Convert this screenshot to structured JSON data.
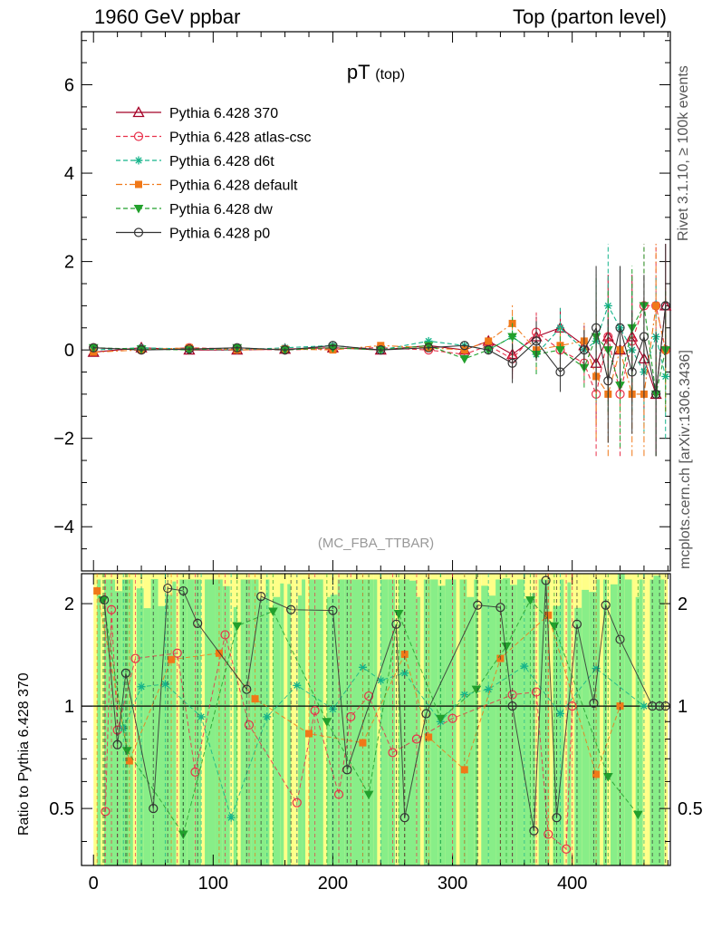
{
  "header": {
    "left": "1960 GeV ppbar",
    "right": "Top (parton level)"
  },
  "side_labels": {
    "rivet": "Rivet 3.1.10, ≥ 100k events",
    "mcplots": "mcplots.cern.ch [arXiv:1306.3436]"
  },
  "chart_data": [
    {
      "type": "scatter",
      "panel": "main",
      "title_main": "pT",
      "title_sub": "(top)",
      "watermark": "(MC_FBA_TTBAR)",
      "xlabel": "",
      "ylabel": "",
      "xlim": [
        -10,
        482
      ],
      "ylim": [
        -5,
        7.2
      ],
      "yticks": [
        -4,
        -2,
        0,
        2,
        4,
        6
      ],
      "ytick_labels": [
        "−4",
        "−2",
        "0",
        "2",
        "4",
        "6"
      ],
      "series": [
        {
          "name": "Pythia 6.428 370",
          "color": "#a50026",
          "marker": "triangle-open",
          "line": "solid",
          "x": [
            0,
            40,
            80,
            120,
            160,
            200,
            240,
            280,
            310,
            330,
            350,
            370,
            390,
            410,
            420,
            430,
            440,
            450,
            460,
            470,
            478
          ],
          "y": [
            -0.05,
            0.05,
            0.0,
            0.0,
            0.02,
            0.05,
            0.0,
            0.1,
            0.0,
            0.2,
            -0.1,
            0.3,
            0.5,
            0.1,
            -0.3,
            0.3,
            0.0,
            0.3,
            -0.2,
            -1.0,
            1.0
          ]
        },
        {
          "name": "Pythia 6.428 atlas-csc",
          "color": "#e8304a",
          "marker": "circle-open",
          "line": "dashed",
          "x": [
            0,
            40,
            80,
            120,
            160,
            200,
            240,
            280,
            310,
            330,
            350,
            370,
            390,
            410,
            420,
            430,
            440,
            450,
            460,
            470,
            478
          ],
          "y": [
            0.05,
            0.0,
            0.05,
            0.02,
            0.0,
            0.03,
            0.05,
            0.0,
            -0.1,
            0.1,
            -0.2,
            0.4,
            0.0,
            -0.3,
            -1.0,
            0.3,
            -1.0,
            0.2,
            1.0,
            1.0,
            0.0
          ]
        },
        {
          "name": "Pythia 6.428 d6t",
          "color": "#14b38a",
          "marker": "star",
          "line": "dashed",
          "x": [
            0,
            40,
            80,
            120,
            160,
            200,
            240,
            280,
            310,
            330,
            350,
            370,
            390,
            410,
            420,
            430,
            440,
            450,
            460,
            470,
            478
          ],
          "y": [
            0.0,
            0.05,
            0.02,
            0.0,
            0.05,
            0.1,
            0.0,
            0.2,
            0.1,
            0.0,
            0.3,
            -0.1,
            0.5,
            0.0,
            0.2,
            1.0,
            0.5,
            0.0,
            -0.5,
            0.3,
            -0.6
          ]
        },
        {
          "name": "Pythia 6.428 default",
          "color": "#f07818",
          "marker": "square",
          "line": "dashdot",
          "x": [
            0,
            40,
            80,
            120,
            160,
            200,
            240,
            280,
            310,
            330,
            350,
            370,
            390,
            410,
            420,
            430,
            440,
            450,
            460,
            470,
            478
          ],
          "y": [
            -0.05,
            0.0,
            0.05,
            0.0,
            0.02,
            0.0,
            0.1,
            0.05,
            0.0,
            0.2,
            0.6,
            0.0,
            0.1,
            0.2,
            -0.6,
            -1.0,
            0.0,
            -1.0,
            -1.0,
            1.0,
            0.0
          ]
        },
        {
          "name": "Pythia 6.428 dw",
          "color": "#22a02c",
          "marker": "triangle-down",
          "line": "dashed",
          "x": [
            0,
            40,
            80,
            120,
            160,
            200,
            240,
            280,
            310,
            330,
            350,
            370,
            390,
            410,
            420,
            430,
            440,
            450,
            460,
            470,
            478
          ],
          "y": [
            0.05,
            0.02,
            0.0,
            0.05,
            0.0,
            0.05,
            0.0,
            0.1,
            -0.2,
            0.0,
            0.3,
            -0.1,
            0.0,
            -0.4,
            0.3,
            0.0,
            -0.8,
            0.5,
            1.0,
            -1.0,
            0.0
          ]
        },
        {
          "name": "Pythia 6.428 p0",
          "color": "#333333",
          "marker": "circle-open",
          "line": "solid",
          "x": [
            0,
            40,
            80,
            120,
            160,
            200,
            240,
            280,
            310,
            330,
            350,
            370,
            390,
            410,
            420,
            430,
            440,
            450,
            460,
            470,
            478
          ],
          "y": [
            0.05,
            0.0,
            0.02,
            0.05,
            0.0,
            0.1,
            0.0,
            0.05,
            0.1,
            0.0,
            -0.3,
            0.2,
            -0.5,
            0.0,
            0.5,
            -0.7,
            0.5,
            -0.5,
            0.3,
            -1.0,
            1.0
          ]
        }
      ]
    },
    {
      "type": "scatter",
      "panel": "ratio",
      "ylabel": "Ratio to Pythia 6.428 370",
      "xlim": [
        -10,
        482
      ],
      "ylim": [
        0.34,
        2.45
      ],
      "yscale": "log",
      "yticks": [
        0.5,
        1,
        2
      ],
      "ytick_labels": [
        "0.5",
        "1",
        "2"
      ],
      "xticks": [
        0,
        100,
        200,
        300,
        400
      ],
      "xtick_labels": [
        "0",
        "100",
        "200",
        "300",
        "400"
      ],
      "reference": 1,
      "band_colors": {
        "inner": "#88ee88",
        "outer": "#ffff88"
      },
      "series": [
        {
          "name": "Pythia 6.428 atlas-csc",
          "color": "#e8304a",
          "marker": "circle-open",
          "x": [
            10,
            15,
            20,
            35,
            70,
            85,
            110,
            130,
            170,
            185,
            205,
            215,
            230,
            250,
            270,
            300,
            350,
            370,
            380,
            395,
            400
          ],
          "y": [
            0.49,
            1.92,
            0.85,
            1.38,
            1.43,
            0.64,
            1.62,
            0.88,
            0.52,
            0.97,
            0.55,
            0.93,
            1.07,
            0.73,
            0.8,
            0.92,
            1.08,
            1.1,
            0.42,
            0.38,
            1.0
          ]
        },
        {
          "name": "Pythia 6.428 d6t",
          "color": "#14b38a",
          "marker": "star",
          "x": [
            25,
            40,
            60,
            90,
            115,
            145,
            170,
            200,
            225,
            240,
            260,
            290,
            310,
            330,
            360,
            390,
            420,
            460
          ],
          "y": [
            0.86,
            1.14,
            1.16,
            0.93,
            0.47,
            0.93,
            1.15,
            0.98,
            1.3,
            1.19,
            1.25,
            0.9,
            1.08,
            1.12,
            1.31,
            0.95,
            1.29,
            1.0
          ]
        },
        {
          "name": "Pythia 6.428 default",
          "color": "#f07818",
          "marker": "square",
          "x": [
            3,
            30,
            65,
            105,
            135,
            180,
            225,
            260,
            280,
            310,
            340,
            380,
            420,
            440
          ],
          "y": [
            2.18,
            0.69,
            1.37,
            1.43,
            1.05,
            0.83,
            0.78,
            1.42,
            0.81,
            0.65,
            1.38,
            1.85,
            0.63,
            1.0
          ]
        },
        {
          "name": "Pythia 6.428 dw",
          "color": "#22a02c",
          "marker": "triangle-down",
          "x": [
            8,
            28,
            75,
            120,
            150,
            195,
            230,
            255,
            290,
            320,
            345,
            365,
            385,
            430,
            455
          ],
          "y": [
            2.05,
            0.74,
            0.42,
            1.72,
            1.9,
            0.9,
            0.55,
            1.87,
            0.92,
            1.12,
            1.5,
            2.05,
            1.72,
            0.62,
            0.48
          ]
        },
        {
          "name": "Pythia 6.428 p0",
          "color": "#333333",
          "marker": "circle-open",
          "x": [
            9,
            20,
            27,
            50,
            62,
            75,
            87,
            128,
            140,
            165,
            200,
            212,
            253,
            260,
            278,
            321,
            340,
            350,
            368,
            378,
            387,
            404,
            418,
            428,
            440,
            467,
            473,
            478
          ],
          "y": [
            2.05,
            0.77,
            1.25,
            0.5,
            2.22,
            2.18,
            1.75,
            1.12,
            2.1,
            1.92,
            1.91,
            0.65,
            1.74,
            0.47,
            0.95,
            1.98,
            1.95,
            1.0,
            0.43,
            2.34,
            0.47,
            1.74,
            1.02,
            1.98,
            1.57,
            1.0,
            1.0,
            1.0
          ]
        }
      ]
    }
  ]
}
